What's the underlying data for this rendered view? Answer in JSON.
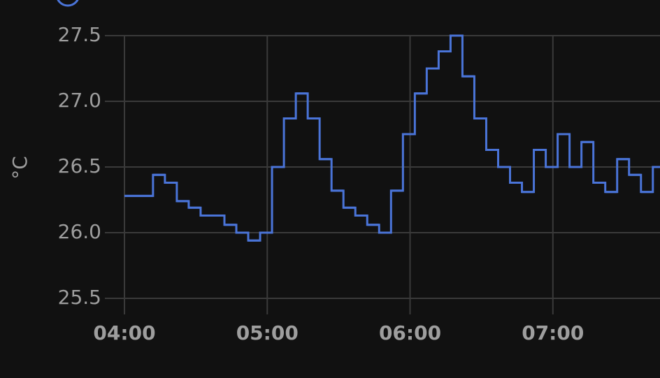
{
  "chart_data": {
    "type": "step-line",
    "y_label": "°C",
    "x": [
      "04:00",
      "04:12",
      "04:17",
      "04:22",
      "04:27",
      "04:32",
      "04:42",
      "04:47",
      "04:52",
      "04:57",
      "05:02",
      "05:07",
      "05:12",
      "05:17",
      "05:22",
      "05:27",
      "05:32",
      "05:37",
      "05:42",
      "05:47",
      "05:52",
      "05:57",
      "06:02",
      "06:07",
      "06:12",
      "06:17",
      "06:22",
      "06:27",
      "06:32",
      "06:37",
      "06:42",
      "06:47",
      "06:52",
      "06:57",
      "07:02",
      "07:07",
      "07:12",
      "07:17",
      "07:22",
      "07:27",
      "07:32",
      "07:37",
      "07:42"
    ],
    "series": [
      {
        "color": "#4a74d8",
        "values": [
          26.28,
          26.44,
          26.38,
          26.24,
          26.19,
          26.13,
          26.06,
          26.0,
          25.94,
          26.0,
          26.5,
          26.87,
          27.06,
          26.87,
          26.56,
          26.32,
          26.19,
          26.13,
          26.06,
          26.0,
          26.32,
          26.75,
          27.06,
          27.25,
          27.38,
          27.5,
          27.19,
          26.87,
          26.63,
          26.5,
          26.38,
          26.31,
          26.63,
          26.5,
          26.75,
          26.5,
          26.69,
          26.38,
          26.31,
          26.56,
          26.44,
          26.31,
          26.5
        ]
      }
    ],
    "xlim": [
      "04:00",
      "07:45"
    ],
    "xticks": [
      "04:00",
      "05:00",
      "06:00",
      "07:00"
    ],
    "ylim": [
      25.5,
      27.5
    ],
    "yticks": [
      {
        "value": 25.5,
        "label": "25.5"
      },
      {
        "value": 26,
        "label": "26.0"
      },
      {
        "value": 26.5,
        "label": "26.5"
      },
      {
        "value": 27,
        "label": "27.0"
      },
      {
        "value": 27.5,
        "label": "27.5"
      }
    ],
    "grid": true
  }
}
